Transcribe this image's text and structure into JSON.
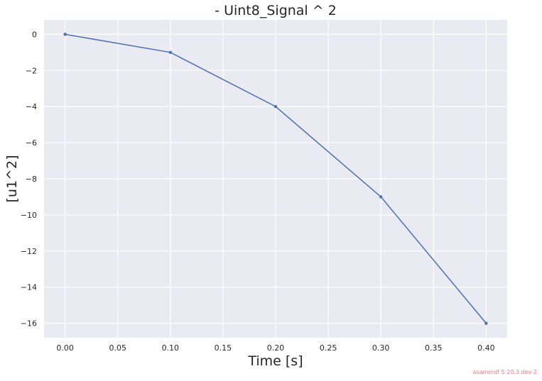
{
  "chart_data": {
    "type": "line",
    "title": "- Uint8_Signal ^ 2",
    "xlabel": "Time [s]",
    "ylabel": "[u1^2]",
    "xlim": [
      -0.02,
      0.42
    ],
    "ylim": [
      -16.8,
      0.8
    ],
    "x_ticks": [
      0.0,
      0.05,
      0.1,
      0.15,
      0.2,
      0.25,
      0.3,
      0.35,
      0.4
    ],
    "x_tick_labels": [
      "0.00",
      "0.05",
      "0.10",
      "0.15",
      "0.20",
      "0.25",
      "0.30",
      "0.35",
      "0.40"
    ],
    "y_ticks": [
      0,
      -2,
      -4,
      -6,
      -8,
      -10,
      -12,
      -14,
      -16
    ],
    "y_tick_labels": [
      "0",
      "−2",
      "−4",
      "−6",
      "−8",
      "−10",
      "−12",
      "−14",
      "−16"
    ],
    "x": [
      0.0,
      0.1,
      0.2,
      0.3,
      0.4
    ],
    "series": [
      {
        "values": [
          0,
          -1,
          -4,
          -9,
          -16
        ],
        "color": "#4c72b0"
      }
    ],
    "grid": true,
    "background": "#eaeaf2",
    "grid_color": "#ffffff"
  },
  "watermark": "asammdf 5.20.3.dev-2"
}
